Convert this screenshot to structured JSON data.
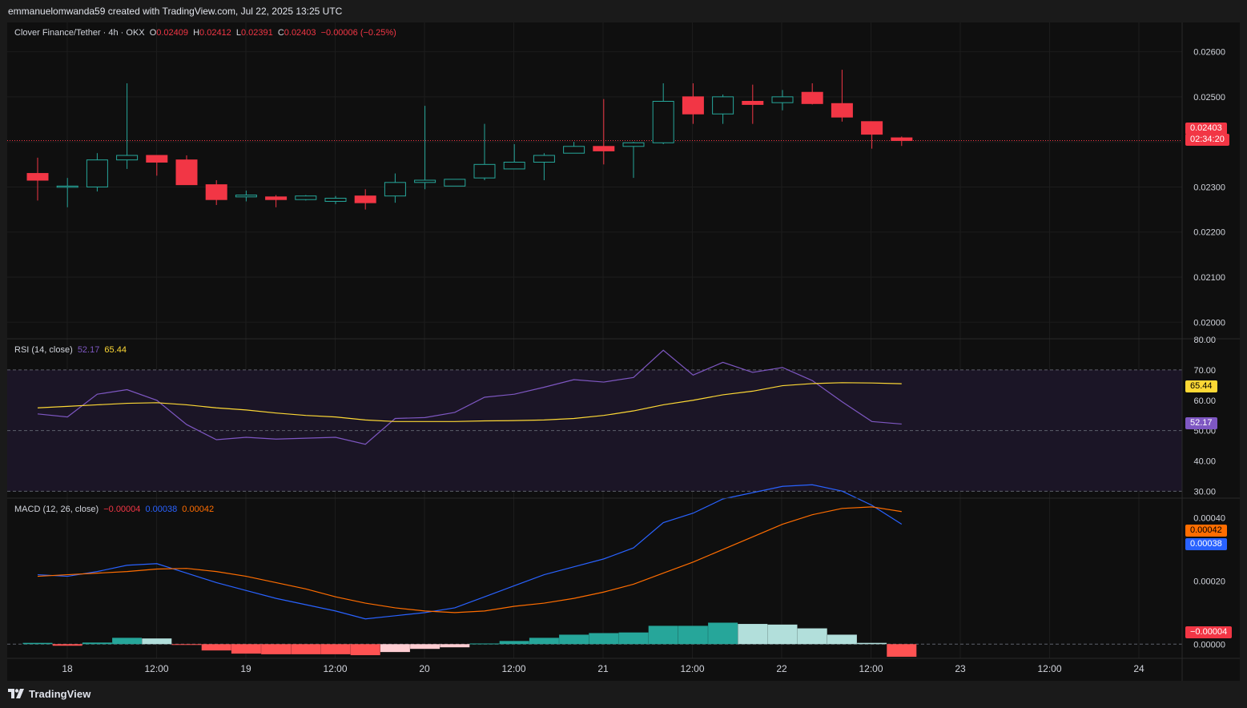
{
  "header": {
    "attribution": "emmanuelomwanda59 created with TradingView.com, Jul 22, 2025 13:25 UTC"
  },
  "footer": {
    "brand": "TradingView",
    "logo_icon": "tradingview-logo-icon"
  },
  "colors": {
    "background": "#0f0f0f",
    "up": "#26a69a",
    "down": "#f23645",
    "rsi": "#7e57c2",
    "rsi_ma": "#fdd835",
    "macd": "#2962ff",
    "signal": "#ff6d00"
  },
  "price_legend": {
    "symbol": "Clover Finance/Tether · 4h · OKX",
    "o_label": "O",
    "o": "0.02409",
    "h_label": "H",
    "h": "0.02412",
    "l_label": "L",
    "l": "0.02391",
    "c_label": "C",
    "c": "0.02403",
    "change": "−0.00006 (−0.25%)"
  },
  "rsi_legend": {
    "name": "RSI (14, close)",
    "rsi": "52.17",
    "ma": "65.44"
  },
  "macd_legend": {
    "name": "MACD (12, 26, close)",
    "hist": "−0.00004",
    "macd": "0.00038",
    "signal": "0.00042"
  },
  "tags": {
    "price": "0.02403",
    "countdown": "02:34:20",
    "rsi_ma": "65.44",
    "rsi": "52.17",
    "signal": "0.00042",
    "macd": "0.00038",
    "hist": "−0.00004"
  },
  "chart_data": [
    {
      "type": "candlestick",
      "title": "Clover Finance/Tether · 4h · OKX",
      "x_ticks": [
        "18",
        "12:00",
        "19",
        "12:00",
        "20",
        "12:00",
        "21",
        "12:00",
        "22",
        "12:00",
        "23",
        "12:00",
        "24"
      ],
      "y_ticks": [
        "0.02600",
        "0.02500",
        "0.02400",
        "0.02300",
        "0.02200",
        "0.02100",
        "0.02000"
      ],
      "ylim": [
        0.01965,
        0.02665
      ],
      "candles": [
        {
          "o": 0.0233,
          "h": 0.02365,
          "l": 0.0227,
          "c": 0.02315
        },
        {
          "o": 0.02302,
          "h": 0.0232,
          "l": 0.02255,
          "c": 0.02302
        },
        {
          "o": 0.023,
          "h": 0.02375,
          "l": 0.0229,
          "c": 0.0236
        },
        {
          "o": 0.0236,
          "h": 0.0253,
          "l": 0.0234,
          "c": 0.0237
        },
        {
          "o": 0.0237,
          "h": 0.0237,
          "l": 0.02325,
          "c": 0.02355
        },
        {
          "o": 0.0236,
          "h": 0.0237,
          "l": 0.02305,
          "c": 0.02305
        },
        {
          "o": 0.02305,
          "h": 0.02315,
          "l": 0.0226,
          "c": 0.02272
        },
        {
          "o": 0.02278,
          "h": 0.02292,
          "l": 0.02268,
          "c": 0.02282
        },
        {
          "o": 0.02278,
          "h": 0.02282,
          "l": 0.02255,
          "c": 0.02272
        },
        {
          "o": 0.02272,
          "h": 0.02282,
          "l": 0.0227,
          "c": 0.0228
        },
        {
          "o": 0.02268,
          "h": 0.0228,
          "l": 0.02262,
          "c": 0.02275
        },
        {
          "o": 0.0228,
          "h": 0.02295,
          "l": 0.0225,
          "c": 0.02265
        },
        {
          "o": 0.0228,
          "h": 0.0233,
          "l": 0.02265,
          "c": 0.0231
        },
        {
          "o": 0.0231,
          "h": 0.0248,
          "l": 0.02295,
          "c": 0.02315
        },
        {
          "o": 0.02302,
          "h": 0.02315,
          "l": 0.02302,
          "c": 0.02317
        },
        {
          "o": 0.0232,
          "h": 0.0244,
          "l": 0.02315,
          "c": 0.0235
        },
        {
          "o": 0.0234,
          "h": 0.02395,
          "l": 0.0234,
          "c": 0.02355
        },
        {
          "o": 0.02355,
          "h": 0.02375,
          "l": 0.02315,
          "c": 0.0237
        },
        {
          "o": 0.02375,
          "h": 0.024,
          "l": 0.02375,
          "c": 0.0239
        },
        {
          "o": 0.0239,
          "h": 0.02495,
          "l": 0.0235,
          "c": 0.0238
        },
        {
          "o": 0.0239,
          "h": 0.024,
          "l": 0.0232,
          "c": 0.02398
        },
        {
          "o": 0.02398,
          "h": 0.0253,
          "l": 0.02395,
          "c": 0.0249
        },
        {
          "o": 0.025,
          "h": 0.0253,
          "l": 0.0244,
          "c": 0.02462
        },
        {
          "o": 0.02462,
          "h": 0.02505,
          "l": 0.0244,
          "c": 0.025
        },
        {
          "o": 0.0249,
          "h": 0.02527,
          "l": 0.0244,
          "c": 0.02483
        },
        {
          "o": 0.02487,
          "h": 0.02515,
          "l": 0.0247,
          "c": 0.025
        },
        {
          "o": 0.0251,
          "h": 0.0253,
          "l": 0.02483,
          "c": 0.02485
        },
        {
          "o": 0.02485,
          "h": 0.0256,
          "l": 0.02445,
          "c": 0.02455
        },
        {
          "o": 0.02445,
          "h": 0.02445,
          "l": 0.02385,
          "c": 0.02417
        },
        {
          "o": 0.02409,
          "h": 0.02412,
          "l": 0.02391,
          "c": 0.02403
        }
      ]
    },
    {
      "type": "line",
      "title": "RSI (14, close)",
      "y_ticks": [
        "80.00",
        "70.00",
        "60.00",
        "50.00",
        "40.00",
        "30.00"
      ],
      "ylim": [
        28,
        80
      ],
      "bands": [
        30,
        50,
        70
      ],
      "series": [
        {
          "values": [
            55.5,
            54.5,
            62,
            63.5,
            60,
            52,
            47,
            47.8,
            47.2,
            47.5,
            47.8,
            45.5,
            54,
            54.3,
            56,
            61,
            62,
            64.3,
            66.8,
            66,
            67.5,
            76.5,
            68.3,
            72.5,
            69.2,
            70.8,
            66.5,
            59.5,
            53,
            52.17
          ]
        },
        {
          "values": [
            57.5,
            58,
            58.5,
            59,
            59.2,
            58.5,
            57.5,
            56.8,
            55.8,
            55,
            54.5,
            53.5,
            53,
            53,
            53,
            53.2,
            53.3,
            53.5,
            54,
            55,
            56.5,
            58.5,
            60,
            61.8,
            63,
            64.8,
            65.5,
            65.8,
            65.7,
            65.44
          ]
        }
      ]
    },
    {
      "type": "bar",
      "title": "MACD (12, 26, close)",
      "y_ticks": [
        "0.00040",
        "0.00020",
        "0.00000"
      ],
      "ylim": [
        -4.5e-05,
        0.00046
      ],
      "series": [
        {
          "values": [
            0.00022,
            0.000215,
            0.00023,
            0.00025,
            0.000255,
            0.000225,
            0.000195,
            0.00017,
            0.000145,
            0.000125,
            0.000105,
            8e-05,
            9e-05,
            0.0001,
            0.000115,
            0.00015,
            0.000185,
            0.00022,
            0.000245,
            0.00027,
            0.000305,
            0.000385,
            0.000415,
            0.00046,
            0.00048,
            0.0005,
            0.000505,
            0.000485,
            0.00044,
            0.00038
          ]
        },
        {
          "values": [
            0.000215,
            0.00022,
            0.000225,
            0.00023,
            0.000238,
            0.00024,
            0.00023,
            0.000215,
            0.000195,
            0.000175,
            0.00015,
            0.00013,
            0.000115,
            0.000105,
            0.0001,
            0.000105,
            0.00012,
            0.00013,
            0.000145,
            0.000165,
            0.00019,
            0.000225,
            0.00026,
            0.0003,
            0.00034,
            0.00038,
            0.00041,
            0.00043,
            0.000435,
            0.00042
          ]
        },
        {
          "values": [
            4e-06,
            -5e-06,
            5e-06,
            2e-05,
            1.8e-05,
            -1e-06,
            -2e-05,
            -3e-05,
            -3.2e-05,
            -3.2e-05,
            -3.2e-05,
            -3.5e-05,
            -2.5e-05,
            -1.5e-05,
            -1e-05,
            2e-06,
            1e-05,
            2e-05,
            3e-05,
            3.5e-05,
            3.7e-05,
            5.8e-05,
            5.8e-05,
            6.8e-05,
            6.4e-05,
            6.2e-05,
            5e-05,
            3e-05,
            4e-06,
            -4e-05
          ]
        }
      ]
    }
  ]
}
